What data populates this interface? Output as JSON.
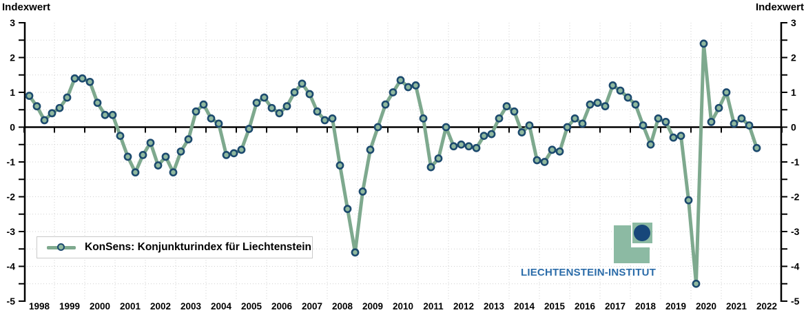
{
  "header": {
    "ylabel_left": "Indexwert",
    "ylabel_right": "Indexwert"
  },
  "legend": {
    "label": "KonSens: Konjunkturindex für Liechtenstein"
  },
  "logo": {
    "text": "LIECHTENSTEIN-INSTITUT"
  },
  "colors": {
    "line_green": "#7EA98E",
    "marker_fill": "#8FB89E",
    "marker_stroke": "#1C4A6E",
    "logo_green": "#8CBAA3",
    "logo_navy": "#17477A",
    "logo_text_blue": "#2B6CA9",
    "grid_gray": "#cfcfcf",
    "axis_black": "#000000",
    "legend_border": "#c9c9c9"
  },
  "chart_data": {
    "type": "line",
    "title": "KonSens: Konjunkturindex für Liechtenstein",
    "ylabel": "Indexwert",
    "xlabel": "",
    "frequency": "quarterly",
    "x_start": "1998-Q1",
    "x_end": "2022-Q1",
    "ylim": [
      -5,
      3
    ],
    "ytick_step": 1,
    "grid": "dotted, 0.5 unit steps horizontal, yearly vertical",
    "legend_position": "bottom-left",
    "years": [
      1998,
      1999,
      2000,
      2001,
      2002,
      2003,
      2004,
      2005,
      2006,
      2007,
      2008,
      2009,
      2010,
      2011,
      2012,
      2013,
      2014,
      2015,
      2016,
      2017,
      2018,
      2019,
      2020,
      2021,
      2022
    ],
    "yticks": [
      3,
      2,
      1,
      0,
      -1,
      -2,
      -3,
      -4,
      -5
    ],
    "values": [
      0.9,
      0.6,
      0.2,
      0.4,
      0.55,
      0.85,
      1.4,
      1.4,
      1.3,
      0.7,
      0.35,
      0.35,
      -0.25,
      -0.85,
      -1.3,
      -0.8,
      -0.45,
      -1.1,
      -0.85,
      -1.3,
      -0.7,
      -0.35,
      0.45,
      0.65,
      0.25,
      0.1,
      -0.8,
      -0.75,
      -0.65,
      -0.05,
      0.7,
      0.85,
      0.55,
      0.4,
      0.6,
      1.0,
      1.25,
      0.95,
      0.45,
      0.2,
      0.25,
      -1.1,
      -2.35,
      -3.6,
      -1.85,
      -0.65,
      0.0,
      0.65,
      1.0,
      1.35,
      1.15,
      1.2,
      0.25,
      -1.15,
      -0.9,
      0.0,
      -0.55,
      -0.5,
      -0.55,
      -0.6,
      -0.25,
      -0.2,
      0.25,
      0.6,
      0.45,
      -0.15,
      0.05,
      -0.95,
      -1.0,
      -0.65,
      -0.7,
      0.0,
      0.25,
      0.1,
      0.65,
      0.7,
      0.6,
      1.2,
      1.05,
      0.85,
      0.65,
      0.05,
      -0.5,
      0.25,
      0.15,
      -0.3,
      -0.25,
      -2.1,
      -4.5,
      2.4,
      0.15,
      0.55,
      1.0,
      0.1,
      0.25,
      0.05,
      -0.6
    ]
  }
}
